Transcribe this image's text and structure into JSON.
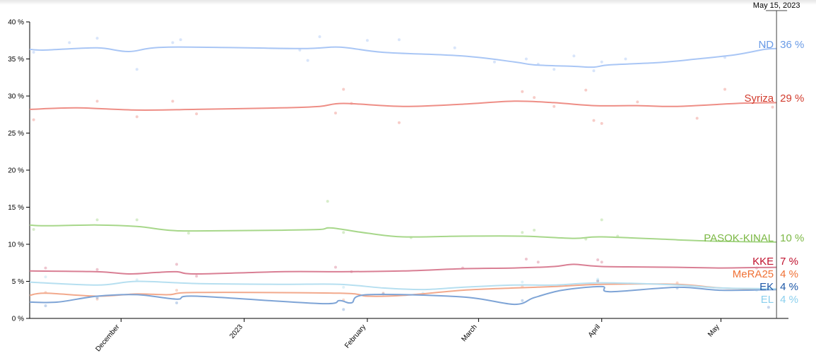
{
  "chart_data": {
    "type": "line",
    "title": "",
    "xlabel": "",
    "ylabel": "",
    "ylim": [
      0,
      40
    ],
    "x_range": [
      "2022-11-08",
      "2023-05-18"
    ],
    "y_ticks": [
      "0 %",
      "5 %",
      "10 %",
      "15 %",
      "20 %",
      "25 %",
      "30 %",
      "35 %",
      "40 %"
    ],
    "x_ticks": [
      {
        "label": "December",
        "date": "2022-12-01"
      },
      {
        "label": "2023",
        "date": "2023-01-01"
      },
      {
        "label": "February",
        "date": "2023-02-01"
      },
      {
        "label": "March",
        "date": "2023-03-01"
      },
      {
        "label": "April",
        "date": "2023-04-01"
      },
      {
        "label": "May",
        "date": "2023-05-01"
      }
    ],
    "cursor": {
      "date": "2023-05-15",
      "label": "May 15, 2023"
    },
    "grid": false,
    "legend": "right-end labels",
    "series": [
      {
        "name": "ND",
        "end_label": "ND",
        "end_value": "36 %",
        "color": "#a9c6f5",
        "label_color": "#6a9be6",
        "points": [
          [
            "2022-11-08",
            36.3
          ],
          [
            "2022-11-12",
            36.2
          ],
          [
            "2022-11-25",
            36.5
          ],
          [
            "2022-12-03",
            36.0
          ],
          [
            "2022-12-13",
            36.6
          ],
          [
            "2023-01-15",
            36.4
          ],
          [
            "2023-01-25",
            36.6
          ],
          [
            "2023-02-05",
            35.9
          ],
          [
            "2023-02-25",
            35.4
          ],
          [
            "2023-03-10",
            34.6
          ],
          [
            "2023-03-15",
            34.2
          ],
          [
            "2023-03-25",
            34.0
          ],
          [
            "2023-03-30",
            33.9
          ],
          [
            "2023-04-03",
            34.2
          ],
          [
            "2023-04-15",
            34.5
          ],
          [
            "2023-04-25",
            35.0
          ],
          [
            "2023-05-05",
            35.6
          ],
          [
            "2023-05-12",
            36.3
          ],
          [
            "2023-05-15",
            36.4
          ]
        ],
        "polls": [
          [
            "2022-11-09",
            35.9
          ],
          [
            "2022-11-18",
            37.2
          ],
          [
            "2022-11-25",
            37.8
          ],
          [
            "2022-12-05",
            33.6
          ],
          [
            "2022-12-14",
            37.2
          ],
          [
            "2022-12-16",
            37.6
          ],
          [
            "2023-01-15",
            36.2
          ],
          [
            "2023-01-17",
            34.8
          ],
          [
            "2023-01-20",
            38.0
          ],
          [
            "2023-02-01",
            37.5
          ],
          [
            "2023-02-09",
            37.6
          ],
          [
            "2023-02-23",
            36.5
          ],
          [
            "2023-03-05",
            34.6
          ],
          [
            "2023-03-13",
            35.0
          ],
          [
            "2023-03-16",
            34.3
          ],
          [
            "2023-03-20",
            33.6
          ],
          [
            "2023-03-25",
            35.4
          ],
          [
            "2023-03-30",
            33.4
          ],
          [
            "2023-04-01",
            34.6
          ],
          [
            "2023-04-07",
            35.0
          ],
          [
            "2023-05-02",
            35.2
          ],
          [
            "2023-05-12",
            36.8
          ]
        ]
      },
      {
        "name": "Syriza",
        "end_label": "Syriza",
        "end_value": "29 %",
        "color": "#ee8e86",
        "label_color": "#d23c2e",
        "points": [
          [
            "2022-11-08",
            28.2
          ],
          [
            "2022-11-20",
            28.4
          ],
          [
            "2022-12-05",
            28.1
          ],
          [
            "2022-12-20",
            28.2
          ],
          [
            "2023-01-10",
            28.4
          ],
          [
            "2023-01-20",
            28.6
          ],
          [
            "2023-01-26",
            29.0
          ],
          [
            "2023-02-10",
            28.6
          ],
          [
            "2023-02-25",
            28.9
          ],
          [
            "2023-03-10",
            29.3
          ],
          [
            "2023-03-20",
            29.1
          ],
          [
            "2023-03-30",
            28.7
          ],
          [
            "2023-04-10",
            28.7
          ],
          [
            "2023-04-20",
            28.6
          ],
          [
            "2023-05-05",
            29.0
          ],
          [
            "2023-05-15",
            29.1
          ]
        ],
        "polls": [
          [
            "2022-11-09",
            26.8
          ],
          [
            "2022-11-25",
            29.3
          ],
          [
            "2022-12-05",
            27.2
          ],
          [
            "2022-12-14",
            29.3
          ],
          [
            "2022-12-20",
            27.6
          ],
          [
            "2023-01-24",
            27.7
          ],
          [
            "2023-01-26",
            30.9
          ],
          [
            "2023-01-28",
            29.0
          ],
          [
            "2023-02-09",
            26.4
          ],
          [
            "2023-03-12",
            30.6
          ],
          [
            "2023-03-15",
            29.8
          ],
          [
            "2023-03-20",
            28.6
          ],
          [
            "2023-03-28",
            30.8
          ],
          [
            "2023-03-30",
            26.7
          ],
          [
            "2023-04-01",
            26.3
          ],
          [
            "2023-04-10",
            29.2
          ],
          [
            "2023-04-25",
            27.0
          ],
          [
            "2023-05-02",
            30.9
          ],
          [
            "2023-05-14",
            28.5
          ]
        ]
      },
      {
        "name": "PASOK-KINAL",
        "end_label": "PASOK-KINAL",
        "end_value": "10 %",
        "color": "#a7d78a",
        "label_color": "#7cb845",
        "points": [
          [
            "2022-11-08",
            12.6
          ],
          [
            "2022-11-12",
            12.5
          ],
          [
            "2022-11-25",
            12.6
          ],
          [
            "2022-12-05",
            12.4
          ],
          [
            "2022-12-13",
            11.9
          ],
          [
            "2022-12-20",
            11.8
          ],
          [
            "2023-01-10",
            11.9
          ],
          [
            "2023-01-20",
            12.0
          ],
          [
            "2023-01-23",
            12.2
          ],
          [
            "2023-02-01",
            11.5
          ],
          [
            "2023-02-10",
            11.0
          ],
          [
            "2023-02-25",
            11.1
          ],
          [
            "2023-03-12",
            11.1
          ],
          [
            "2023-03-25",
            10.8
          ],
          [
            "2023-04-01",
            11.0
          ],
          [
            "2023-04-20",
            10.6
          ],
          [
            "2023-05-01",
            10.4
          ],
          [
            "2023-05-15",
            10.3
          ]
        ],
        "polls": [
          [
            "2022-11-09",
            12.0
          ],
          [
            "2022-11-25",
            13.3
          ],
          [
            "2022-12-05",
            13.3
          ],
          [
            "2022-12-18",
            11.5
          ],
          [
            "2023-01-22",
            15.8
          ],
          [
            "2023-01-26",
            11.6
          ],
          [
            "2023-02-12",
            10.9
          ],
          [
            "2023-03-12",
            11.6
          ],
          [
            "2023-03-15",
            11.9
          ],
          [
            "2023-03-28",
            10.7
          ],
          [
            "2023-04-01",
            13.3
          ],
          [
            "2023-04-05",
            11.1
          ],
          [
            "2023-05-10",
            10.8
          ]
        ]
      },
      {
        "name": "KKE",
        "end_label": "KKE",
        "end_value": "7 %",
        "color": "#d97f94",
        "label_color": "#c0122e",
        "points": [
          [
            "2022-11-08",
            6.4
          ],
          [
            "2022-11-25",
            6.3
          ],
          [
            "2022-12-03",
            6.0
          ],
          [
            "2022-12-10",
            6.2
          ],
          [
            "2022-12-15",
            6.3
          ],
          [
            "2022-12-20",
            6.0
          ],
          [
            "2023-01-10",
            6.3
          ],
          [
            "2023-01-25",
            6.3
          ],
          [
            "2023-02-10",
            6.4
          ],
          [
            "2023-02-25",
            6.7
          ],
          [
            "2023-03-10",
            6.8
          ],
          [
            "2023-03-20",
            7.0
          ],
          [
            "2023-03-25",
            7.3
          ],
          [
            "2023-04-01",
            7.0
          ],
          [
            "2023-04-20",
            6.9
          ],
          [
            "2023-05-01",
            6.8
          ],
          [
            "2023-05-15",
            6.9
          ]
        ],
        "polls": [
          [
            "2022-11-12",
            6.8
          ],
          [
            "2022-11-25",
            6.6
          ],
          [
            "2022-12-15",
            7.3
          ],
          [
            "2022-12-20",
            5.7
          ],
          [
            "2023-01-24",
            6.9
          ],
          [
            "2023-01-28",
            6.3
          ],
          [
            "2023-02-25",
            6.8
          ],
          [
            "2023-03-13",
            8.0
          ],
          [
            "2023-03-16",
            7.6
          ],
          [
            "2023-03-31",
            7.9
          ],
          [
            "2023-04-01",
            7.6
          ],
          [
            "2023-05-10",
            6.8
          ]
        ]
      },
      {
        "name": "MeRA25",
        "end_label": "MeRA25",
        "end_value": "4 %",
        "color": "#f2a98c",
        "label_color": "#f07135",
        "points": [
          [
            "2022-11-08",
            3.1
          ],
          [
            "2022-11-12",
            3.4
          ],
          [
            "2022-11-25",
            3.0
          ],
          [
            "2022-12-05",
            3.3
          ],
          [
            "2022-12-13",
            3.2
          ],
          [
            "2022-12-20",
            3.5
          ],
          [
            "2023-01-25",
            3.4
          ],
          [
            "2023-02-01",
            3.0
          ],
          [
            "2023-02-10",
            3.1
          ],
          [
            "2023-02-25",
            3.8
          ],
          [
            "2023-03-10",
            4.1
          ],
          [
            "2023-03-20",
            4.3
          ],
          [
            "2023-04-01",
            4.6
          ],
          [
            "2023-04-20",
            4.6
          ],
          [
            "2023-05-01",
            4.1
          ],
          [
            "2023-05-15",
            3.9
          ]
        ],
        "polls": [
          [
            "2022-11-12",
            3.5
          ],
          [
            "2022-11-25",
            2.6
          ],
          [
            "2022-12-15",
            3.8
          ],
          [
            "2023-01-26",
            2.5
          ],
          [
            "2023-02-05",
            3.4
          ],
          [
            "2023-03-12",
            4.3
          ],
          [
            "2023-03-31",
            5.0
          ],
          [
            "2023-04-20",
            4.8
          ]
        ]
      },
      {
        "name": "EK",
        "end_label": "EK",
        "end_value": "4 %",
        "color": "#7ea4d6",
        "label_color": "#1f59a8",
        "points": [
          [
            "2022-11-08",
            2.2
          ],
          [
            "2022-11-15",
            2.2
          ],
          [
            "2022-11-25",
            3.0
          ],
          [
            "2022-12-05",
            3.2
          ],
          [
            "2022-12-15",
            2.6
          ],
          [
            "2022-12-20",
            3.0
          ],
          [
            "2023-01-20",
            2.0
          ],
          [
            "2023-01-25",
            2.4
          ],
          [
            "2023-01-28",
            2.1
          ],
          [
            "2023-02-01",
            3.2
          ],
          [
            "2023-02-25",
            2.9
          ],
          [
            "2023-03-10",
            1.9
          ],
          [
            "2023-03-15",
            2.8
          ],
          [
            "2023-03-22",
            3.8
          ],
          [
            "2023-04-01",
            4.3
          ],
          [
            "2023-04-03",
            3.6
          ],
          [
            "2023-04-20",
            4.2
          ],
          [
            "2023-05-01",
            3.8
          ],
          [
            "2023-05-15",
            3.9
          ]
        ],
        "polls": [
          [
            "2022-11-12",
            1.7
          ],
          [
            "2022-11-25",
            2.8
          ],
          [
            "2022-12-15",
            2.1
          ],
          [
            "2023-01-26",
            1.2
          ],
          [
            "2023-02-05",
            3.3
          ],
          [
            "2023-03-12",
            2.4
          ],
          [
            "2023-03-31",
            5.1
          ],
          [
            "2023-04-20",
            4.1
          ],
          [
            "2023-05-13",
            1.5
          ]
        ]
      },
      {
        "name": "EL",
        "end_label": "EL",
        "end_value": "4 %",
        "color": "#b6dff0",
        "label_color": "#8bd0ee",
        "points": [
          [
            "2022-11-08",
            4.9
          ],
          [
            "2022-11-25",
            4.5
          ],
          [
            "2022-12-05",
            5.0
          ],
          [
            "2022-12-20",
            4.7
          ],
          [
            "2023-01-10",
            4.6
          ],
          [
            "2023-01-25",
            4.6
          ],
          [
            "2023-02-05",
            4.1
          ],
          [
            "2023-02-15",
            3.9
          ],
          [
            "2023-02-25",
            4.2
          ],
          [
            "2023-03-10",
            4.5
          ],
          [
            "2023-03-20",
            4.5
          ],
          [
            "2023-04-01",
            4.8
          ],
          [
            "2023-04-20",
            4.5
          ],
          [
            "2023-05-01",
            4.1
          ],
          [
            "2023-05-15",
            4.0
          ]
        ],
        "polls": [
          [
            "2022-11-12",
            5.6
          ],
          [
            "2022-12-05",
            5.2
          ],
          [
            "2023-01-26",
            4.2
          ],
          [
            "2023-02-15",
            3.4
          ],
          [
            "2023-03-12",
            4.9
          ],
          [
            "2023-03-31",
            5.3
          ],
          [
            "2023-05-10",
            3.8
          ]
        ]
      }
    ]
  }
}
